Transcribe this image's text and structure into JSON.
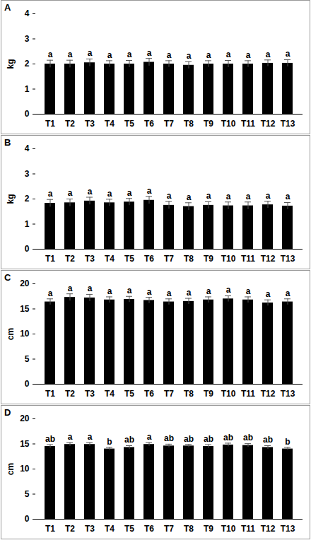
{
  "chart_data": [
    {
      "type": "bar",
      "title": "A",
      "y_label": "kg",
      "color": "#000000",
      "categories": [
        "T1",
        "T2",
        "T3",
        "T4",
        "T5",
        "T6",
        "T7",
        "T8",
        "T9",
        "T10",
        "T11",
        "T12",
        "T13"
      ],
      "values": [
        2.0,
        2.0,
        2.05,
        2.0,
        2.0,
        2.07,
        2.0,
        1.95,
        2.0,
        2.0,
        2.0,
        2.03,
        2.03
      ],
      "errors": [
        0.15,
        0.15,
        0.15,
        0.13,
        0.14,
        0.15,
        0.13,
        0.14,
        0.13,
        0.14,
        0.13,
        0.13,
        0.14
      ],
      "letters": [
        "a",
        "a",
        "a",
        "a",
        "a",
        "a",
        "a",
        "a",
        "a",
        "a",
        "a",
        "a",
        "a"
      ],
      "ylim": [
        0,
        4
      ],
      "yticks": [
        0,
        1,
        2,
        3,
        4
      ],
      "grid": false
    },
    {
      "type": "bar",
      "title": "B",
      "y_label": "kg",
      "color": "#000000",
      "categories": [
        "T1",
        "T2",
        "T3",
        "T4",
        "T5",
        "T6",
        "T7",
        "T8",
        "T9",
        "T10",
        "T11",
        "T12",
        "T13"
      ],
      "values": [
        1.83,
        1.85,
        1.92,
        1.85,
        1.88,
        1.95,
        1.75,
        1.7,
        1.75,
        1.73,
        1.73,
        1.77,
        1.72
      ],
      "errors": [
        0.15,
        0.15,
        0.15,
        0.14,
        0.14,
        0.15,
        0.15,
        0.15,
        0.14,
        0.15,
        0.15,
        0.14,
        0.14
      ],
      "letters": [
        "a",
        "a",
        "a",
        "a",
        "a",
        "a",
        "a",
        "a",
        "a",
        "a",
        "a",
        "a",
        "a"
      ],
      "ylim": [
        0,
        4
      ],
      "yticks": [
        0,
        1,
        2,
        3,
        4
      ],
      "grid": false
    },
    {
      "type": "bar",
      "title": "C",
      "y_label": "cm",
      "color": "#000000",
      "categories": [
        "T1",
        "T2",
        "T3",
        "T4",
        "T5",
        "T6",
        "T7",
        "T8",
        "T9",
        "T10",
        "T11",
        "T12",
        "T13"
      ],
      "values": [
        16.4,
        17.3,
        17.2,
        16.8,
        16.9,
        16.7,
        16.4,
        16.5,
        16.8,
        17.0,
        16.8,
        16.2,
        16.4
      ],
      "errors": [
        0.6,
        0.7,
        0.7,
        0.6,
        0.6,
        0.6,
        0.6,
        0.6,
        0.6,
        0.6,
        0.6,
        0.6,
        0.6
      ],
      "letters": [
        "a",
        "a",
        "a",
        "a",
        "a",
        "a",
        "a",
        "a",
        "a",
        "a",
        "a",
        "a",
        "a"
      ],
      "ylim": [
        0,
        20
      ],
      "yticks": [
        0,
        5,
        10,
        15,
        20
      ],
      "grid": false
    },
    {
      "type": "bar",
      "title": "D",
      "y_label": "cm",
      "color": "#000000",
      "categories": [
        "T1",
        "T2",
        "T3",
        "T4",
        "T5",
        "T6",
        "T7",
        "T8",
        "T9",
        "T10",
        "T11",
        "T12",
        "T13"
      ],
      "values": [
        14.5,
        14.9,
        14.9,
        14.0,
        14.3,
        14.9,
        14.6,
        14.6,
        14.5,
        14.8,
        14.7,
        14.3,
        14.0
      ],
      "errors": [
        0.35,
        0.35,
        0.35,
        0.3,
        0.35,
        0.35,
        0.35,
        0.3,
        0.35,
        0.35,
        0.35,
        0.35,
        0.3
      ],
      "letters": [
        "ab",
        "a",
        "a",
        "b",
        "ab",
        "a",
        "ab",
        "ab",
        "ab",
        "ab",
        "ab",
        "ab",
        "b"
      ],
      "ylim": [
        0,
        20
      ],
      "yticks": [
        0,
        5,
        10,
        15,
        20
      ],
      "grid": false
    }
  ]
}
